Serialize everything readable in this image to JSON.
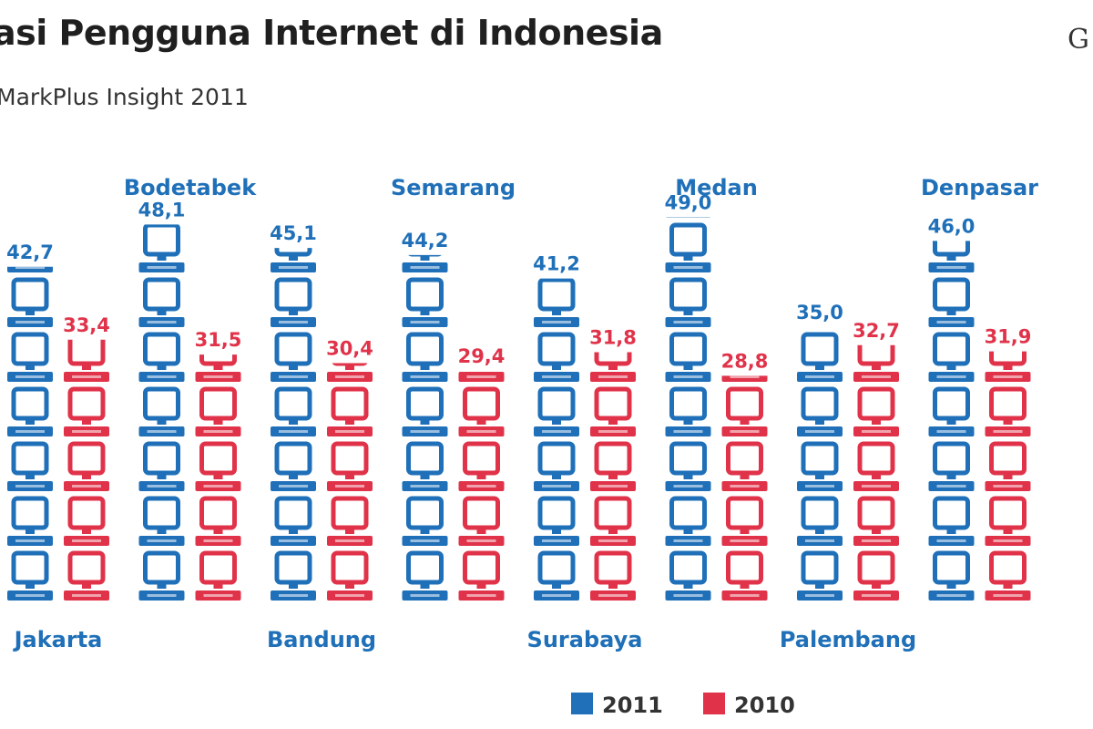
{
  "header": {
    "title": "asi Pengguna Internet di Indonesia",
    "subtitle": "MarkPlus Insight 2011",
    "logo_text": "G"
  },
  "colors": {
    "series_2011": "#1f70b8",
    "series_2010": "#e0334a",
    "city_label": "#1f70b8"
  },
  "icons": {
    "unit": "computer-monitor-icon",
    "legend_2011": "blue-square-icon",
    "legend_2010": "red-square-icon"
  },
  "chart_data": {
    "type": "bar",
    "categories": [
      "Jakarta",
      "Bodetabek",
      "Bandung",
      "Semarang",
      "Surabaya",
      "Medan",
      "Palembang",
      "Denpasar"
    ],
    "label_rows": [
      "bottom",
      "top",
      "bottom",
      "top",
      "bottom",
      "top",
      "bottom",
      "top"
    ],
    "series": [
      {
        "name": "2011",
        "values": [
          42.7,
          48.1,
          45.1,
          44.2,
          41.2,
          49.0,
          35.0,
          46.0
        ],
        "labels": [
          "42,7",
          "48,1",
          "45,1",
          "44,2",
          "41,2",
          "49,0",
          "35,0",
          "46,0"
        ]
      },
      {
        "name": "2010",
        "values": [
          33.4,
          31.5,
          30.4,
          29.4,
          31.8,
          28.8,
          32.7,
          31.9
        ],
        "labels": [
          "33,4",
          "31,5",
          "30,4",
          "29,4",
          "31,8",
          "28,8",
          "32,7",
          "31,9"
        ]
      }
    ],
    "legend_placement": "bottom-right",
    "grid": false
  }
}
